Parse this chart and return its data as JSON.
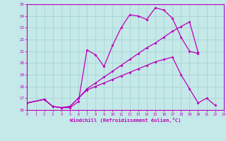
{
  "xlabel": "Windchill (Refroidissement éolien,°C)",
  "xlim": [
    0,
    23
  ],
  "ylim": [
    16,
    25
  ],
  "yticks": [
    16,
    17,
    18,
    19,
    20,
    21,
    22,
    23,
    24,
    25
  ],
  "xticks": [
    0,
    1,
    2,
    3,
    4,
    5,
    6,
    7,
    8,
    9,
    10,
    11,
    12,
    13,
    14,
    15,
    16,
    17,
    18,
    19,
    20,
    21,
    22,
    23
  ],
  "bg_color": "#c5e8e8",
  "line_color": "#bb00bb",
  "grid_color": "#a0d0d0",
  "s1_x": [
    0,
    2,
    3,
    4,
    5,
    6,
    7,
    8,
    9,
    10,
    11,
    12,
    13,
    14,
    15,
    16,
    17,
    18,
    19,
    20
  ],
  "s1_y": [
    16.6,
    16.9,
    16.3,
    16.2,
    16.2,
    16.7,
    21.1,
    20.7,
    19.7,
    21.5,
    23.0,
    24.1,
    24.0,
    23.7,
    24.7,
    24.5,
    23.8,
    22.2,
    21.0,
    20.8
  ],
  "s2_x": [
    0,
    2,
    3,
    4,
    5,
    6,
    7,
    8,
    9,
    10,
    11,
    12,
    13,
    14,
    15,
    16,
    17,
    18,
    19,
    20
  ],
  "s2_y": [
    16.6,
    16.9,
    16.3,
    16.2,
    16.3,
    17.0,
    17.8,
    18.3,
    18.8,
    19.3,
    19.8,
    20.3,
    20.8,
    21.3,
    21.7,
    22.2,
    22.7,
    23.1,
    23.5,
    20.9
  ],
  "s3_x": [
    0,
    2,
    3,
    4,
    5,
    6,
    7,
    8,
    9,
    10,
    11,
    12,
    13,
    14,
    15,
    16,
    17,
    18,
    19,
    20,
    21,
    22
  ],
  "s3_y": [
    16.6,
    16.9,
    16.3,
    16.2,
    16.3,
    17.0,
    17.7,
    18.0,
    18.3,
    18.6,
    18.9,
    19.2,
    19.5,
    19.8,
    20.1,
    20.3,
    20.5,
    19.0,
    17.8,
    16.6,
    17.0,
    16.4
  ]
}
